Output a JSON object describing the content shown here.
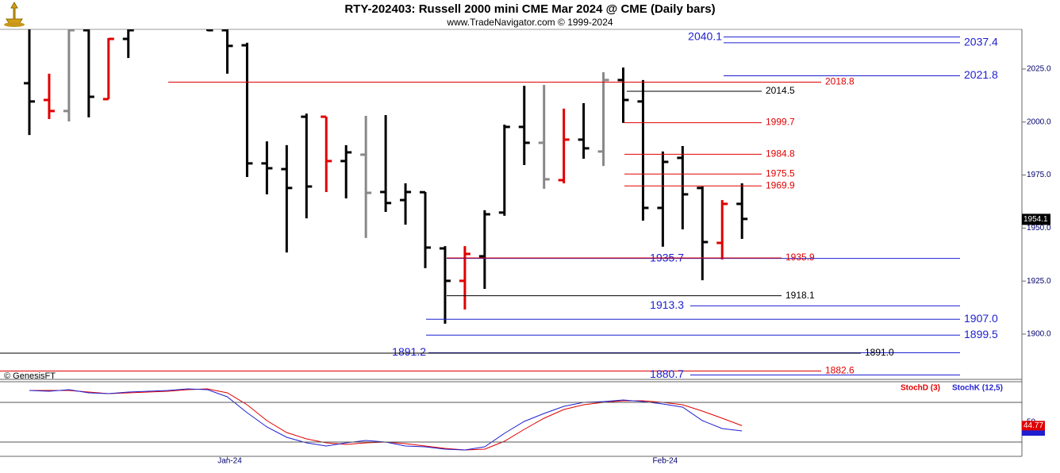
{
  "chart_data": [
    {
      "type": "ohlc",
      "title": "RTY-202403:  Russell 2000 mini CME Mar 2024 @ CME  (Daily bars)",
      "subtitle": "www.TradeNavigator.com © 1999-2024",
      "source": "© GenesisFT",
      "categories": [
        null,
        null,
        null,
        null,
        null,
        null,
        null,
        null,
        null,
        null,
        "Jan-24",
        null,
        null,
        null,
        null,
        null,
        null,
        null,
        null,
        null,
        null,
        null,
        null,
        null,
        null,
        null,
        null,
        null,
        null,
        null,
        null,
        null,
        "Feb-24",
        null,
        null,
        null,
        null
      ],
      "series": [
        {
          "open": [
            2018.3,
            2010.4,
            2005.2,
            2043.3,
            2010.8,
            2039.2,
            null,
            null,
            null,
            2048,
            2043.3,
            2036.2,
            1980.5,
            1977.8,
            2002.5,
            2002.5,
            1981.6,
            1984.6,
            1967.0,
            1963.2,
            1966.9,
            1940.4,
            1925.1,
            1936.7,
            1957.3,
            1997.7,
            1990.2,
            1972.6,
            1991.7,
            1986.1,
            2019.8,
            2009.7,
            1959.5,
            1983.1,
            1968.9,
            1943.0,
            1961.4
          ],
          "high": [
            2046,
            2022.8,
            2045,
            2046,
            2039.6,
            2046,
            null,
            null,
            null,
            2050,
            2046,
            2037.4,
            1990.9,
            1989.1,
            2004.0,
            2002.5,
            1989.1,
            2002.9,
            2003.3,
            1971.1,
            1967.0,
            1941.5,
            1941.5,
            1958.4,
            1998.8,
            2017.1,
            2017.5,
            2006.3,
            2008.9,
            2023.5,
            2025.7,
            2019.8,
            1986.1,
            1988.7,
            1969.6,
            1963.2,
            1971.1
          ],
          "low": [
            1993.9,
            2001.4,
            2000.3,
            2002.2,
            2010.8,
            2030.2,
            null,
            null,
            null,
            2042.9,
            2022.8,
            1974.1,
            1965.9,
            1938.5,
            1954.6,
            1967.0,
            1964.0,
            1945.3,
            1957.6,
            1951.6,
            1931.1,
            1904.9,
            1911.6,
            1921.3,
            1955.8,
            1979.7,
            1968.5,
            1971.1,
            1982.7,
            1979.3,
            1999.6,
            1953.5,
            1941.2,
            1949.4,
            1925.4,
            1935.2,
            1944.9
          ],
          "close": [
            2009.7,
            2005.2,
            2043.3,
            2011.9,
            2039.2,
            2043.3,
            null,
            null,
            null,
            2043.3,
            2035.9,
            1980.5,
            1978.2,
            1968.9,
            1969.6,
            1981.6,
            1985.7,
            1966.6,
            1961.8,
            1967.0,
            1940.8,
            1925.1,
            1937.8,
            1956.5,
            1997.7,
            1990.2,
            1973.0,
            1991.7,
            1987.6,
            2019.8,
            2010.4,
            1959.5,
            1981.2,
            1965.9,
            1943.4,
            1961.4,
            1954.3
          ]
        }
      ],
      "colors": [
        "#000000",
        "#e00000",
        "#888888",
        "#000000",
        "#e00000",
        "#000000",
        null,
        null,
        null,
        "#000000",
        "#000000",
        "#000000",
        "#000000",
        "#000000",
        "#000000",
        "#e00000",
        "#000000",
        "#888888",
        "#000000",
        "#000000",
        "#000000",
        "#000000",
        "#e00000",
        "#000000",
        "#000000",
        "#000000",
        "#888888",
        "#e00000",
        "#000000",
        "#888888",
        "#000000",
        "#000000",
        "#000000",
        "#000000",
        "#000000",
        "#e00000",
        "#000000"
      ],
      "ylim": [
        1879.4,
        2043.7
      ],
      "yticks": [
        {
          "value": 1900,
          "label": "1900.0"
        },
        {
          "value": 1925,
          "label": "1925.0"
        },
        {
          "value": 1950,
          "label": "1950.0"
        },
        {
          "value": 1975,
          "label": "1975.0"
        },
        {
          "value": 2000,
          "label": "2000.0"
        },
        {
          "value": 2025,
          "label": "2025.0"
        }
      ],
      "levels": [
        {
          "value": 2040.1,
          "label": "2040.1",
          "color": "#1f1fd0"
        },
        {
          "value": 2037.4,
          "label": "2037.4",
          "color": "#1f1fd0"
        },
        {
          "value": 2021.8,
          "label": "2021.8",
          "color": "#1f1fd0"
        },
        {
          "value": 2018.8,
          "label": "2018.8",
          "color": "#e00000"
        },
        {
          "value": 2014.5,
          "label": "2014.5",
          "color": "#000000"
        },
        {
          "value": 1999.7,
          "label": "1999.7",
          "color": "#e00000"
        },
        {
          "value": 1984.8,
          "label": "1984.8",
          "color": "#e00000"
        },
        {
          "value": 1975.5,
          "label": "1975.5",
          "color": "#e00000"
        },
        {
          "value": 1969.9,
          "label": "1969.9",
          "color": "#e00000"
        },
        {
          "value": 1935.7,
          "label": "1935.7",
          "color": "#1f1fd0"
        },
        {
          "value": 1935.9,
          "label": "1935.9",
          "color": "#e00000"
        },
        {
          "value": 1918.1,
          "label": "1918.1",
          "color": "#000000"
        },
        {
          "value": 1913.3,
          "label": "1913.3",
          "color": "#1f1fd0"
        },
        {
          "value": 1907.0,
          "label": "1907.0",
          "color": "#1f1fd0"
        },
        {
          "value": 1899.5,
          "label": "1899.5",
          "color": "#1f1fd0"
        },
        {
          "value": 1891.2,
          "label": "1891.2",
          "color": "#1f1fd0"
        },
        {
          "value": 1891.0,
          "label": "1891.0",
          "color": "#000000"
        },
        {
          "value": 1882.6,
          "label": "1882.6",
          "color": "#e00000"
        },
        {
          "value": 1880.7,
          "label": "1880.7",
          "color": "#1f1fd0"
        }
      ],
      "last_price": 1954.1
    },
    {
      "type": "line",
      "series": [
        {
          "name": "StochD (3)",
          "color": "#e00000",
          "values": [
            98.0,
            98.0,
            98.0,
            95.6,
            93.2,
            94.4,
            95.6,
            96.8,
            99.2,
            100.4,
            94.4,
            76.4,
            52.4,
            34.4,
            24.8,
            18.8,
            16.4,
            18.8,
            20.0,
            17.6,
            14.0,
            10.4,
            8.0,
            9.2,
            21.2,
            39.2,
            56.0,
            69.2,
            76.4,
            80.0,
            82.4,
            82.4,
            80.0,
            76.4,
            66.8,
            56.0,
            44.77
          ]
        },
        {
          "name": "StochK (12,5)",
          "color": "#1f1fd0",
          "values": [
            98.0,
            96.8,
            99.2,
            94.4,
            93.2,
            95.6,
            96.8,
            98.0,
            100.4,
            99.2,
            88.4,
            64.4,
            42.8,
            27.2,
            18.8,
            14.0,
            18.8,
            22.4,
            20.0,
            14.0,
            12.8,
            9.2,
            8.0,
            12.8,
            33.2,
            51.2,
            63.2,
            74.0,
            80.0,
            81.2,
            83.6,
            81.2,
            77.6,
            72.8,
            52.4,
            40.4,
            36.8
          ]
        }
      ],
      "ylim": [
        -1.6,
        108.8
      ],
      "yticks": [
        50
      ],
      "hlines": [
        80,
        20
      ]
    }
  ]
}
